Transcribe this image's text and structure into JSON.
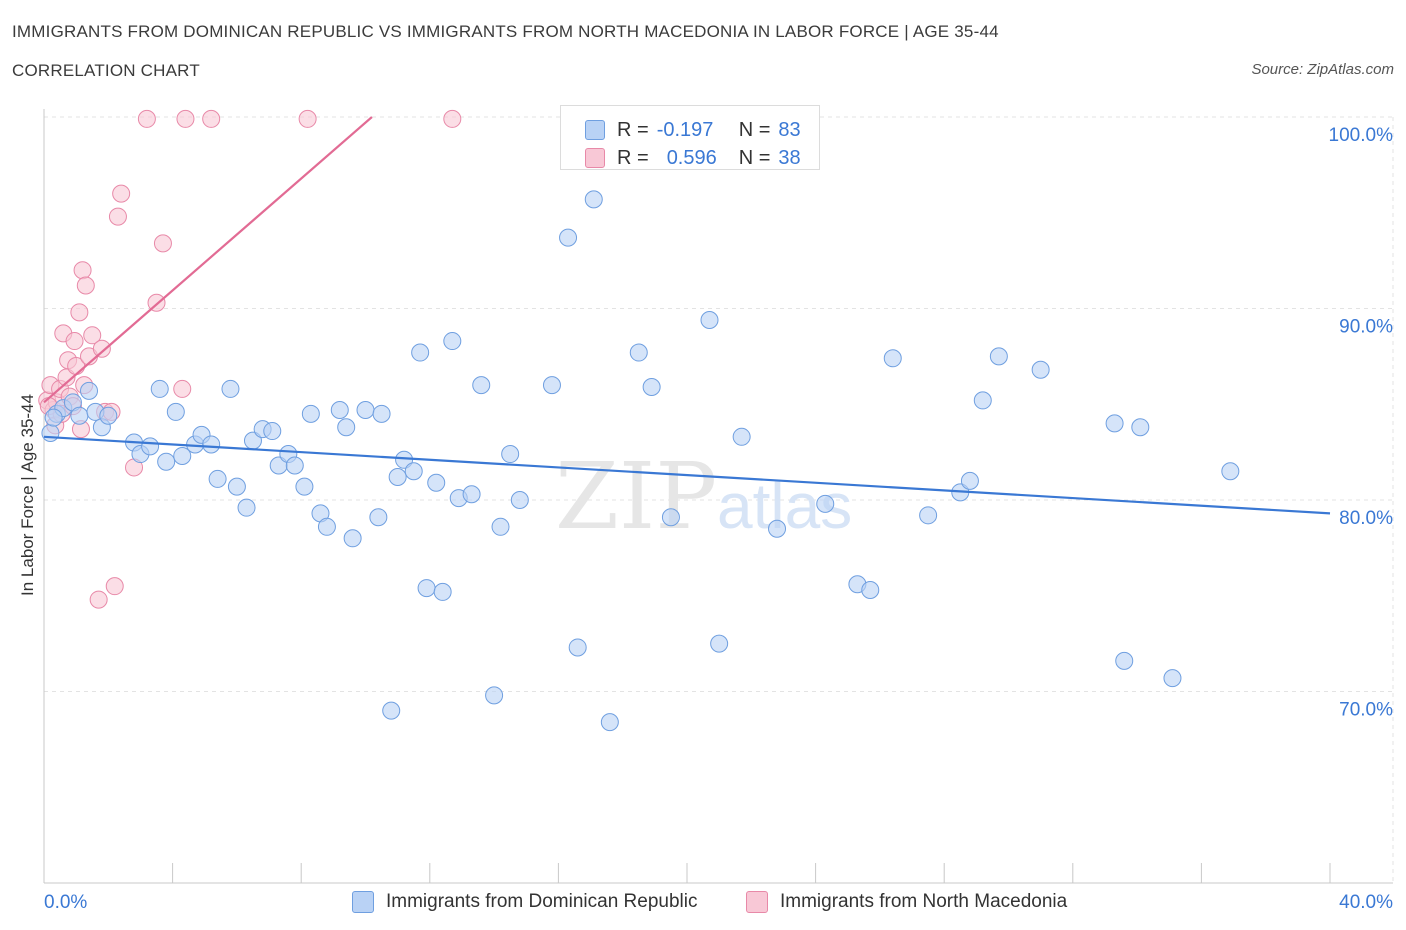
{
  "header": {
    "title": "IMMIGRANTS FROM DOMINICAN REPUBLIC VS IMMIGRANTS FROM NORTH MACEDONIA IN LABOR FORCE | AGE 35-44",
    "subtitle": "CORRELATION CHART",
    "source": "Source: ZipAtlas.com"
  },
  "stats": {
    "blue": {
      "r_label": "R =",
      "r": "-0.197",
      "n_label": "N =",
      "n": "83"
    },
    "pink": {
      "r_label": "R =",
      "r": "0.596",
      "n_label": "N =",
      "n": "38"
    }
  },
  "legend": {
    "blue": "Immigrants from Dominican Republic",
    "pink": "Immigrants from North Macedonia"
  },
  "watermark": {
    "zip": "ZIP",
    "atlas": "atlas"
  },
  "colors": {
    "blue_fill": "#b9d2f5",
    "blue_stroke": "#6f9fe0",
    "blue_line": "#3a78d4",
    "pink_fill": "#f8c8d6",
    "pink_stroke": "#e889a8",
    "pink_line": "#e26b94",
    "tick_text": "#3a78d4",
    "grid": "#e3e3e3"
  },
  "chart_data": {
    "type": "scatter",
    "title": "IMMIGRANTS FROM DOMINICAN REPUBLIC VS IMMIGRANTS FROM NORTH MACEDONIA IN LABOR FORCE | AGE 35-44",
    "xlabel": "",
    "ylabel": "In Labor Force | Age 35-44",
    "xlim": [
      0,
      40
    ],
    "ylim": [
      60,
      100
    ],
    "x_tick_labels": [
      "0.0%",
      "40.0%"
    ],
    "y_ticks": [
      100,
      90,
      80,
      70
    ],
    "y_tick_labels": [
      "100.0%",
      "90.0%",
      "80.0%",
      "70.0%"
    ],
    "grid": true,
    "series": [
      {
        "name": "Immigrants from Dominican Republic",
        "color": "blue",
        "r": -0.197,
        "n": 83,
        "trend": {
          "x": [
            0,
            40
          ],
          "y": [
            83.3,
            79.3
          ]
        },
        "points": [
          [
            0.2,
            83.5
          ],
          [
            0.4,
            84.5
          ],
          [
            0.6,
            84.8
          ],
          [
            0.9,
            85.1
          ],
          [
            1.1,
            84.4
          ],
          [
            1.4,
            85.7
          ],
          [
            1.6,
            84.6
          ],
          [
            1.8,
            83.8
          ],
          [
            2.0,
            84.4
          ],
          [
            2.8,
            83.0
          ],
          [
            3.0,
            82.4
          ],
          [
            3.3,
            82.8
          ],
          [
            3.6,
            85.8
          ],
          [
            3.8,
            82.0
          ],
          [
            4.1,
            84.6
          ],
          [
            4.3,
            82.3
          ],
          [
            4.7,
            82.9
          ],
          [
            4.9,
            83.4
          ],
          [
            5.2,
            82.9
          ],
          [
            5.4,
            81.1
          ],
          [
            5.8,
            85.8
          ],
          [
            6.0,
            80.7
          ],
          [
            6.3,
            79.6
          ],
          [
            6.5,
            83.1
          ],
          [
            6.8,
            83.7
          ],
          [
            7.1,
            83.6
          ],
          [
            7.3,
            81.8
          ],
          [
            7.6,
            82.4
          ],
          [
            7.8,
            81.8
          ],
          [
            8.1,
            80.7
          ],
          [
            8.3,
            84.5
          ],
          [
            8.6,
            79.3
          ],
          [
            8.8,
            78.6
          ],
          [
            9.2,
            84.7
          ],
          [
            9.4,
            83.8
          ],
          [
            9.6,
            78.0
          ],
          [
            10.0,
            84.7
          ],
          [
            10.4,
            79.1
          ],
          [
            10.5,
            84.5
          ],
          [
            10.8,
            69.0
          ],
          [
            11.0,
            81.2
          ],
          [
            11.2,
            82.1
          ],
          [
            11.5,
            81.5
          ],
          [
            11.7,
            87.7
          ],
          [
            11.9,
            75.4
          ],
          [
            12.2,
            80.9
          ],
          [
            12.4,
            75.2
          ],
          [
            12.7,
            88.3
          ],
          [
            12.9,
            80.1
          ],
          [
            13.3,
            80.3
          ],
          [
            13.6,
            86.0
          ],
          [
            14.0,
            69.8
          ],
          [
            14.2,
            78.6
          ],
          [
            14.5,
            82.4
          ],
          [
            14.8,
            80.0
          ],
          [
            15.8,
            86.0
          ],
          [
            16.3,
            93.7
          ],
          [
            16.6,
            72.3
          ],
          [
            17.1,
            95.7
          ],
          [
            17.6,
            68.4
          ],
          [
            18.5,
            87.7
          ],
          [
            18.9,
            85.9
          ],
          [
            19.5,
            79.1
          ],
          [
            20.7,
            89.4
          ],
          [
            21.0,
            72.5
          ],
          [
            21.7,
            83.3
          ],
          [
            22.8,
            78.5
          ],
          [
            24.3,
            79.8
          ],
          [
            25.3,
            75.6
          ],
          [
            25.7,
            75.3
          ],
          [
            26.4,
            87.4
          ],
          [
            27.5,
            79.2
          ],
          [
            28.5,
            80.4
          ],
          [
            28.8,
            81.0
          ],
          [
            29.2,
            85.2
          ],
          [
            29.7,
            87.5
          ],
          [
            31.0,
            86.8
          ],
          [
            33.3,
            84.0
          ],
          [
            33.6,
            71.6
          ],
          [
            34.1,
            83.8
          ],
          [
            35.1,
            70.7
          ],
          [
            36.9,
            81.5
          ],
          [
            0.3,
            84.3
          ]
        ]
      },
      {
        "name": "Immigrants from North Macedonia",
        "color": "pink",
        "r": 0.596,
        "n": 38,
        "trend": {
          "x": [
            0,
            10.2
          ],
          "y": [
            85.1,
            100.0
          ]
        },
        "points": [
          [
            0.1,
            85.2
          ],
          [
            0.2,
            86.0
          ],
          [
            0.3,
            84.7
          ],
          [
            0.35,
            83.9
          ],
          [
            0.4,
            85.1
          ],
          [
            0.5,
            85.8
          ],
          [
            0.55,
            84.5
          ],
          [
            0.6,
            88.7
          ],
          [
            0.7,
            86.4
          ],
          [
            0.75,
            87.3
          ],
          [
            0.8,
            85.4
          ],
          [
            0.9,
            84.9
          ],
          [
            0.95,
            88.3
          ],
          [
            1.0,
            87.0
          ],
          [
            1.1,
            89.8
          ],
          [
            1.15,
            83.7
          ],
          [
            1.2,
            92.0
          ],
          [
            1.25,
            86.0
          ],
          [
            1.3,
            91.2
          ],
          [
            1.4,
            87.5
          ],
          [
            1.5,
            88.6
          ],
          [
            1.7,
            74.8
          ],
          [
            1.8,
            87.9
          ],
          [
            1.9,
            84.6
          ],
          [
            2.1,
            84.6
          ],
          [
            2.2,
            75.5
          ],
          [
            2.3,
            94.8
          ],
          [
            2.4,
            96.0
          ],
          [
            2.8,
            81.7
          ],
          [
            3.2,
            99.9
          ],
          [
            3.5,
            90.3
          ],
          [
            3.7,
            93.4
          ],
          [
            4.3,
            85.8
          ],
          [
            4.4,
            99.9
          ],
          [
            5.2,
            99.9
          ],
          [
            8.2,
            99.9
          ],
          [
            12.7,
            99.9
          ],
          [
            0.15,
            84.9
          ]
        ]
      }
    ]
  }
}
